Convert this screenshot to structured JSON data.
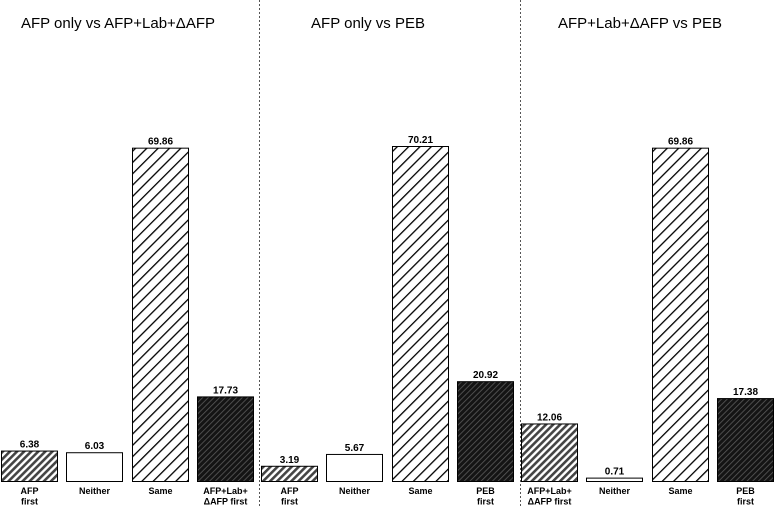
{
  "chart_data": [
    {
      "type": "bar",
      "title": "AFP only vs AFP+Lab+ΔAFP",
      "categories": [
        [
          "AFP",
          "first"
        ],
        [
          "Neither"
        ],
        [
          "Same"
        ],
        [
          "AFP+Lab+",
          "ΔAFP first"
        ]
      ],
      "values": [
        6.38,
        6.03,
        69.86,
        17.73
      ],
      "patterns": [
        "dense-hatch",
        "white",
        "sparse-hatch",
        "black"
      ],
      "xlabel": "",
      "ylabel": "",
      "ylim": [
        0,
        70.21
      ]
    },
    {
      "type": "bar",
      "title": "AFP only vs PEB",
      "categories": [
        [
          "AFP",
          "first"
        ],
        [
          "Neither"
        ],
        [
          "Same"
        ],
        [
          "PEB",
          "first"
        ]
      ],
      "values": [
        3.19,
        5.67,
        70.21,
        20.92
      ],
      "patterns": [
        "dense-hatch",
        "white",
        "sparse-hatch",
        "black"
      ],
      "xlabel": "",
      "ylabel": "",
      "ylim": [
        0,
        70.21
      ]
    },
    {
      "type": "bar",
      "title": "AFP+Lab+ΔAFP vs PEB",
      "categories": [
        [
          "AFP+Lab+",
          "ΔAFP first"
        ],
        [
          "Neither"
        ],
        [
          "Same"
        ],
        [
          "PEB",
          "first"
        ]
      ],
      "values": [
        12.06,
        0.71,
        69.86,
        17.38
      ],
      "patterns": [
        "dense-hatch",
        "white",
        "sparse-hatch",
        "black"
      ],
      "xlabel": "",
      "ylabel": "",
      "ylim": [
        0,
        70.21
      ]
    }
  ],
  "colors": {
    "bar_stroke": "#000000",
    "dense_fill": "#4d4d4d",
    "black_fill": "#1a1a1a",
    "divider": "#555555"
  }
}
